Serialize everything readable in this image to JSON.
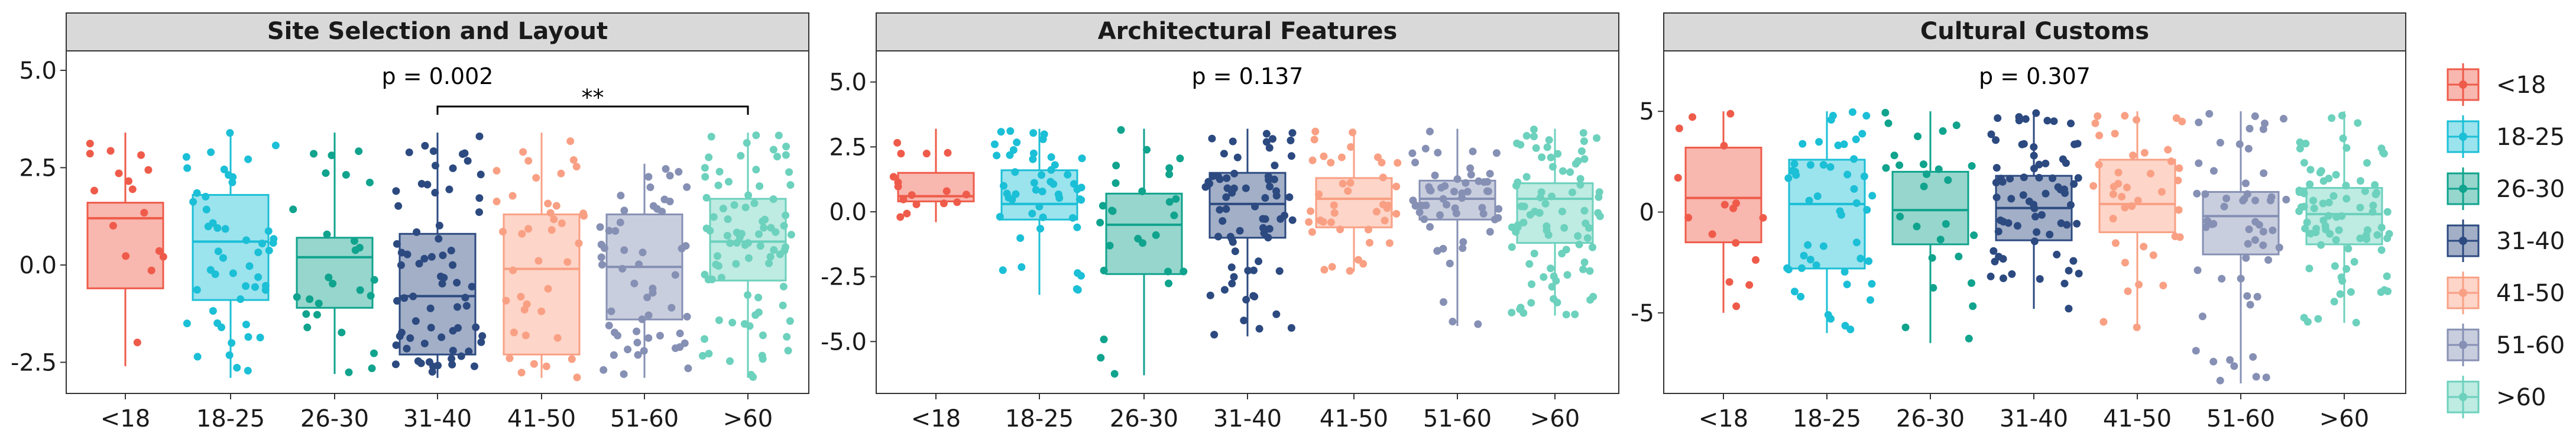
{
  "chart_data": {
    "type": "boxplot",
    "legend_position": "right",
    "groups": [
      "<18",
      "18-25",
      "26-30",
      "31-40",
      "41-50",
      "51-60",
      ">60"
    ],
    "legend_labels": [
      "<18",
      "18-25",
      "26-30",
      "31-40",
      " 41-50",
      "51-60",
      ">60"
    ],
    "colors": [
      "#EF5B4A",
      "#1BBFD6",
      "#10A38D",
      "#2C4A80",
      "#F9A084",
      "#8690B4",
      "#6CD1BD"
    ],
    "panels": [
      {
        "title": "Site Selection and Layout",
        "annotation": "p = 0.002",
        "significance": {
          "from": "31-40",
          "to": ">60",
          "label": "**"
        },
        "ylim": [
          -3.3,
          5.5
        ],
        "yticks": [
          5.0,
          2.5,
          0.0,
          -2.5
        ],
        "ytick_labels": [
          "5.0",
          "2.5",
          "0.0",
          "-2.5"
        ],
        "boxes": [
          {
            "group": "<18",
            "q1": -0.6,
            "median": 1.2,
            "q3": 1.6,
            "lower": -2.6,
            "upper": 3.4,
            "n": 16
          },
          {
            "group": "18-25",
            "q1": -0.9,
            "median": 0.6,
            "q3": 1.8,
            "lower": -2.9,
            "upper": 3.4,
            "n": 50
          },
          {
            "group": "26-30",
            "q1": -1.1,
            "median": 0.2,
            "q3": 0.7,
            "lower": -2.8,
            "upper": 3.4,
            "n": 26
          },
          {
            "group": "31-40",
            "q1": -2.3,
            "median": -0.8,
            "q3": 0.8,
            "lower": -2.9,
            "upper": 3.4,
            "n": 70
          },
          {
            "group": "41-50",
            "q1": -2.3,
            "median": -0.1,
            "q3": 1.3,
            "lower": -2.9,
            "upper": 3.4,
            "n": 40
          },
          {
            "group": "51-60",
            "q1": -1.4,
            "median": -0.05,
            "q3": 1.3,
            "lower": -2.9,
            "upper": 2.6,
            "n": 55
          },
          {
            "group": ">60",
            "q1": -0.4,
            "median": 0.6,
            "q3": 1.7,
            "lower": -2.9,
            "upper": 3.4,
            "n": 85
          }
        ]
      },
      {
        "title": "Architectural Features",
        "annotation": "p = 0.137",
        "ylim": [
          -7.0,
          6.2
        ],
        "yticks": [
          5.0,
          2.5,
          0.0,
          -2.5,
          -5.0
        ],
        "ytick_labels": [
          "5.0",
          "2.5",
          "0.0",
          "-2.5",
          "-5.0"
        ],
        "boxes": [
          {
            "group": "<18",
            "q1": 0.4,
            "median": 0.6,
            "q3": 1.5,
            "lower": -0.4,
            "upper": 3.2,
            "n": 16
          },
          {
            "group": "18-25",
            "q1": -0.3,
            "median": 0.3,
            "q3": 1.6,
            "lower": -3.2,
            "upper": 3.2,
            "n": 50
          },
          {
            "group": "26-30",
            "q1": -2.4,
            "median": -0.5,
            "q3": 0.7,
            "lower": -6.3,
            "upper": 3.2,
            "n": 26
          },
          {
            "group": "31-40",
            "q1": -1.0,
            "median": 0.3,
            "q3": 1.5,
            "lower": -4.8,
            "upper": 3.2,
            "n": 70
          },
          {
            "group": "41-50",
            "q1": -0.6,
            "median": 0.5,
            "q3": 1.3,
            "lower": -2.3,
            "upper": 3.2,
            "n": 40
          },
          {
            "group": "51-60",
            "q1": -0.3,
            "median": 0.5,
            "q3": 1.2,
            "lower": -4.4,
            "upper": 3.2,
            "n": 55
          },
          {
            "group": ">60",
            "q1": -1.2,
            "median": 0.5,
            "q3": 1.1,
            "lower": -4.0,
            "upper": 3.2,
            "n": 85
          }
        ]
      },
      {
        "title": "Cultural Customs",
        "annotation": "p = 0.307",
        "ylim": [
          -9.0,
          8.0
        ],
        "yticks": [
          5,
          0,
          -5
        ],
        "ytick_labels": [
          "5",
          "0",
          "-5"
        ],
        "boxes": [
          {
            "group": "<18",
            "q1": -1.5,
            "median": 0.7,
            "q3": 3.2,
            "lower": -5.0,
            "upper": 5.0,
            "n": 16
          },
          {
            "group": "18-25",
            "q1": -2.8,
            "median": 0.4,
            "q3": 2.6,
            "lower": -6.0,
            "upper": 5.0,
            "n": 50
          },
          {
            "group": "26-30",
            "q1": -1.6,
            "median": 0.1,
            "q3": 2.0,
            "lower": -6.5,
            "upper": 5.0,
            "n": 26
          },
          {
            "group": "31-40",
            "q1": -1.4,
            "median": 0.2,
            "q3": 1.8,
            "lower": -4.8,
            "upper": 5.0,
            "n": 70
          },
          {
            "group": "41-50",
            "q1": -1.0,
            "median": 0.4,
            "q3": 2.6,
            "lower": -5.8,
            "upper": 5.0,
            "n": 40
          },
          {
            "group": "51-60",
            "q1": -2.1,
            "median": -0.2,
            "q3": 1.0,
            "lower": -8.5,
            "upper": 5.0,
            "n": 55
          },
          {
            "group": ">60",
            "q1": -1.6,
            "median": -0.1,
            "q3": 1.2,
            "lower": -5.5,
            "upper": 5.0,
            "n": 85
          }
        ]
      }
    ]
  }
}
